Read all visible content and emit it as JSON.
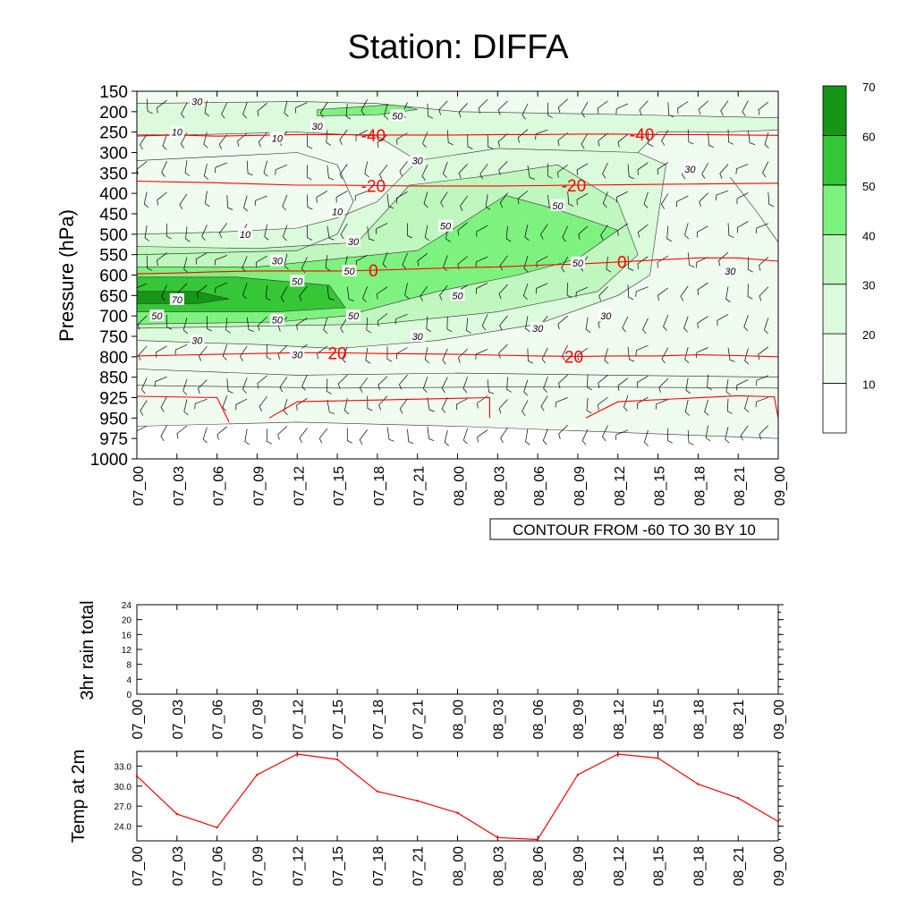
{
  "title": "Station: DIFFA",
  "contour_info": "CONTOUR FROM -60 TO 30 BY 10",
  "colors": {
    "fill_levels": [
      "#ffffff",
      "#f0fcf0",
      "#dcfadc",
      "#bff7bf",
      "#7ef27e",
      "#36c736",
      "#169616"
    ],
    "temp_line": "#ff0000",
    "contour_line": "#000000"
  },
  "chart_data": [
    {
      "name": "rh-time-pressure",
      "type": "heatmap",
      "ylabel": "Pressure (hPa)",
      "y_ticks": [
        150,
        200,
        250,
        300,
        350,
        400,
        450,
        500,
        550,
        600,
        650,
        700,
        750,
        800,
        850,
        925,
        950,
        975,
        1000
      ],
      "x_ticks": [
        "07_00",
        "07_03",
        "07_06",
        "07_09",
        "07_12",
        "07_15",
        "07_18",
        "07_21",
        "08_00",
        "08_03",
        "08_06",
        "08_09",
        "08_12",
        "08_15",
        "08_18",
        "08_21",
        "09_00"
      ],
      "colorbar_levels": [
        10,
        20,
        30,
        40,
        50,
        60,
        70
      ],
      "rh_contour_labels": [
        {
          "text": "30",
          "t": 1.5,
          "p": 175
        },
        {
          "text": "10",
          "t": 1.0,
          "p": 250
        },
        {
          "text": "10",
          "t": 3.5,
          "p": 265
        },
        {
          "text": "30",
          "t": 4.5,
          "p": 235
        },
        {
          "text": "50",
          "t": 6.5,
          "p": 210
        },
        {
          "text": "30",
          "t": 7.0,
          "p": 320
        },
        {
          "text": "30",
          "t": 13.8,
          "p": 340
        },
        {
          "text": "10",
          "t": 5.0,
          "p": 445
        },
        {
          "text": "10",
          "t": 2.7,
          "p": 500
        },
        {
          "text": "30",
          "t": 5.4,
          "p": 518
        },
        {
          "text": "50",
          "t": 7.7,
          "p": 480
        },
        {
          "text": "50",
          "t": 10.5,
          "p": 430
        },
        {
          "text": "30",
          "t": 3.5,
          "p": 565
        },
        {
          "text": "50",
          "t": 5.3,
          "p": 590
        },
        {
          "text": "50",
          "t": 4.0,
          "p": 615
        },
        {
          "text": "70",
          "t": 1.0,
          "p": 660
        },
        {
          "text": "50",
          "t": 0.5,
          "p": 700
        },
        {
          "text": "50",
          "t": 3.5,
          "p": 710
        },
        {
          "text": "50",
          "t": 5.4,
          "p": 700
        },
        {
          "text": "50",
          "t": 8.0,
          "p": 650
        },
        {
          "text": "50",
          "t": 11.0,
          "p": 570
        },
        {
          "text": "30",
          "t": 14.8,
          "p": 590
        },
        {
          "text": "30",
          "t": 1.5,
          "p": 760
        },
        {
          "text": "30",
          "t": 7.0,
          "p": 750
        },
        {
          "text": "30",
          "t": 10.0,
          "p": 730
        },
        {
          "text": "30",
          "t": 11.7,
          "p": 700
        },
        {
          "text": "30",
          "t": 4.0,
          "p": 795
        }
      ],
      "temperature_isotherms": [
        {
          "label": "-40",
          "label_positions": [
            5.9,
            12.6
          ],
          "p_values": [
            257,
            257,
            260,
            258,
            256,
            256,
            257,
            257,
            257,
            256,
            256,
            255,
            255,
            256,
            256,
            257,
            258
          ]
        },
        {
          "label": "-20",
          "label_positions": [
            5.9,
            10.9
          ],
          "p_values": [
            370,
            372,
            374,
            377,
            380,
            380,
            381,
            382,
            382,
            382,
            381,
            380,
            379,
            378,
            377,
            376,
            375
          ]
        },
        {
          "label": "0",
          "label_positions": [
            5.9,
            12.1
          ],
          "p_values": [
            597,
            595,
            592,
            590,
            590,
            590,
            588,
            585,
            582,
            580,
            576,
            573,
            568,
            563,
            558,
            558,
            566
          ]
        },
        {
          "label": "20",
          "label_positions": [
            5.0,
            10.9
          ],
          "p_values": [
            798,
            796,
            794,
            792,
            790,
            790,
            792,
            793,
            794,
            796,
            798,
            799,
            798,
            798,
            795,
            797,
            800
          ]
        }
      ]
    },
    {
      "name": "rain-3hr",
      "type": "line",
      "ylabel": "3hr rain total",
      "ylim": [
        0,
        24
      ],
      "y_ticks": [
        "0",
        "4",
        "8",
        "12",
        "16",
        "20",
        "24"
      ],
      "x": [
        "07_00",
        "07_03",
        "07_06",
        "07_09",
        "07_12",
        "07_15",
        "07_18",
        "07_21",
        "08_00",
        "08_03",
        "08_06",
        "08_09",
        "08_12",
        "08_15",
        "08_18",
        "08_21",
        "09_00"
      ],
      "values": [
        0,
        0,
        0,
        0,
        0,
        0,
        0,
        0,
        0,
        0,
        0,
        0,
        0,
        0,
        0,
        0,
        0
      ]
    },
    {
      "name": "temp-2m",
      "type": "line",
      "ylabel": "Temp at 2m",
      "ylim": [
        21.8,
        35.2
      ],
      "y_ticks": [
        "24.0",
        "27.0",
        "30.0",
        "33.0"
      ],
      "x": [
        "07_00",
        "07_03",
        "07_06",
        "07_09",
        "07_12",
        "07_15",
        "07_18",
        "07_21",
        "08_00",
        "08_03",
        "08_06",
        "08_09",
        "08_12",
        "08_15",
        "08_18",
        "08_21",
        "09_00"
      ],
      "values": [
        31.5,
        25.8,
        23.8,
        31.7,
        34.8,
        34.0,
        29.2,
        27.8,
        26.0,
        22.3,
        22.0,
        31.7,
        34.8,
        34.2,
        30.3,
        28.2,
        24.7
      ]
    }
  ]
}
